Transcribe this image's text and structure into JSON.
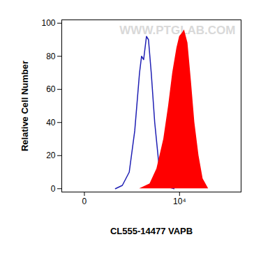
{
  "chart_data": {
    "type": "histogram",
    "x_label": "CL555-14477 VAPB",
    "y_label": "Relative Cell Number",
    "annotations": [
      "WWW.PTGLAB.COM"
    ],
    "xlim": [
      -200,
      200000
    ],
    "xticks": [
      0,
      {
        "value": 10000,
        "label": "10⁴"
      }
    ],
    "ylim": [
      -2,
      102
    ],
    "yticks": [
      0,
      20,
      40,
      60,
      80,
      100
    ],
    "grid": false,
    "series": [
      {
        "type": "line",
        "color": "#1f1fb4",
        "x": [
          350,
          530,
          780,
          1050,
          1350,
          1500,
          1670,
          1930,
          2140,
          2460,
          2930,
          3600,
          4580,
          5810,
          7620
        ],
        "values": [
          0,
          2,
          10,
          35,
          70,
          80,
          78,
          92,
          90,
          70,
          40,
          15,
          4,
          1,
          0
        ]
      },
      {
        "type": "area",
        "color": "#ff0000",
        "x": [
          1350,
          2300,
          3250,
          4580,
          5810,
          7120,
          8730,
          10000,
          11440,
          12660,
          14980,
          17730,
          20960,
          25650,
          31380,
          41000
        ],
        "values": [
          0,
          3,
          12,
          30,
          50,
          70,
          85,
          92,
          94,
          96,
          88,
          65,
          40,
          20,
          6,
          0
        ]
      }
    ]
  }
}
